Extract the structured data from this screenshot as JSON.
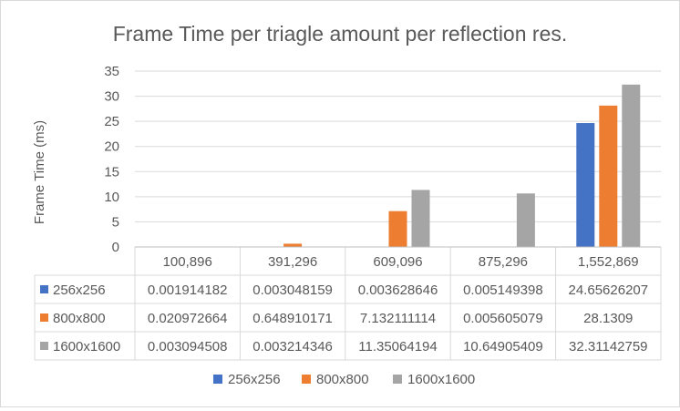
{
  "chart_data": {
    "type": "bar",
    "title": "Frame Time per triagle amount per reflection res.",
    "ylabel": "Frame Time (ms)",
    "xlabel": "",
    "ylim": [
      0,
      35
    ],
    "yticks": [
      "0",
      "5",
      "10",
      "15",
      "20",
      "25",
      "30",
      "35"
    ],
    "grid": true,
    "legend_position": "bottom",
    "categories": [
      "100,896",
      "391,296",
      "609,096",
      "875,296",
      "1,552,869"
    ],
    "series": [
      {
        "name": "256x256",
        "color": "#4472C4",
        "values": [
          0.001914182,
          0.003048159,
          0.003628646,
          0.005149398,
          24.65626207
        ],
        "labels": [
          "0.001914182",
          "0.003048159",
          "0.003628646",
          "0.005149398",
          "24.65626207"
        ]
      },
      {
        "name": "800x800",
        "color": "#ED7D31",
        "values": [
          0.020972664,
          0.648910171,
          7.132111114,
          0.005605079,
          28.1309
        ],
        "labels": [
          "0.020972664",
          "0.648910171",
          "7.132111114",
          "0.005605079",
          "28.1309"
        ]
      },
      {
        "name": "1600x1600",
        "color": "#A5A5A5",
        "values": [
          0.003094508,
          0.003214346,
          11.35064194,
          10.64905409,
          32.31142759
        ],
        "labels": [
          "0.003094508",
          "0.003214346",
          "11.35064194",
          "10.64905409",
          "32.31142759"
        ]
      }
    ]
  }
}
